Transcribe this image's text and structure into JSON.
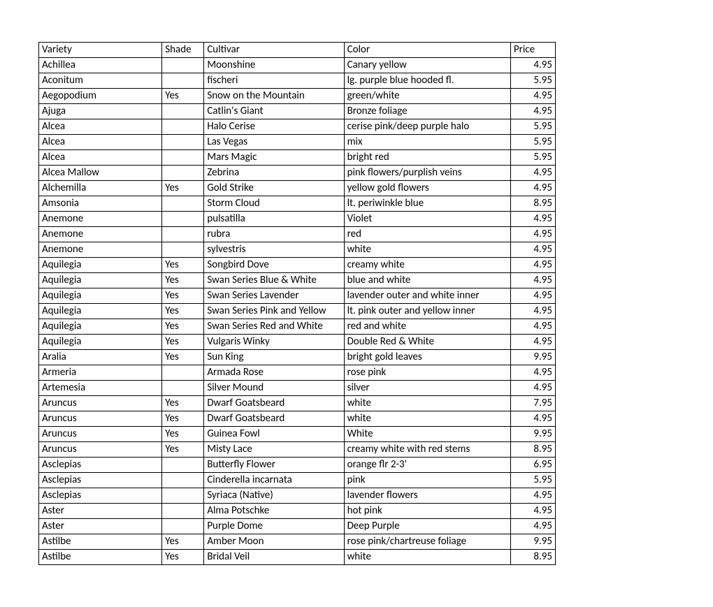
{
  "columns": [
    "Variety",
    "Shade",
    "Cultivar",
    "Color",
    "Price"
  ],
  "rows": [
    [
      "Achillea",
      "",
      "Moonshine",
      "Canary yellow",
      "4.95"
    ],
    [
      "Aconitum",
      "",
      "fischeri",
      "lg. purple blue hooded fl.",
      "5.95"
    ],
    [
      "Aegopodium",
      "Yes",
      "Snow on the Mountain",
      "green/white",
      "4.95"
    ],
    [
      "Ajuga",
      "",
      "Catlin's Giant",
      "Bronze foliage",
      "4.95"
    ],
    [
      "Alcea",
      "",
      "Halo Cerise",
      "cerise pink/deep purple halo",
      "5.95"
    ],
    [
      "Alcea",
      "",
      "Las Vegas",
      "mix",
      "5.95"
    ],
    [
      "Alcea",
      "",
      "Mars Magic",
      "bright red",
      "5.95"
    ],
    [
      "Alcea Mallow",
      "",
      "Zebrina",
      "pink flowers/purplish veins",
      "4.95"
    ],
    [
      "Alchemilla",
      "Yes",
      "Gold Strike",
      "yellow gold flowers",
      "4.95"
    ],
    [
      "Amsonia",
      "",
      "Storm Cloud",
      "lt. periwinkle blue",
      "8.95"
    ],
    [
      "Anemone",
      "",
      "pulsatilla",
      "Violet",
      "4.95"
    ],
    [
      "Anemone",
      "",
      "rubra",
      "red",
      "4.95"
    ],
    [
      "Anemone",
      "",
      "sylvestris",
      "white",
      "4.95"
    ],
    [
      "Aquilegia",
      "Yes",
      "Songbird Dove",
      "creamy white",
      "4.95"
    ],
    [
      "Aquilegia",
      "Yes",
      "Swan Series Blue & White",
      "blue and white",
      "4.95"
    ],
    [
      "Aquilegia",
      "Yes",
      "Swan Series Lavender",
      "lavender outer and white inner",
      "4.95"
    ],
    [
      "Aquilegia",
      "Yes",
      "Swan Series Pink and Yellow",
      "lt. pink outer and yellow inner",
      "4.95"
    ],
    [
      "Aquilegia",
      "Yes",
      "Swan Series Red and White",
      "red and white",
      "4.95"
    ],
    [
      "Aquilegia",
      "Yes",
      "Vulgaris Winky",
      "Double Red & White",
      "4.95"
    ],
    [
      "Aralia",
      "Yes",
      "Sun King",
      "bright gold leaves",
      "9.95"
    ],
    [
      "Armeria",
      "",
      "Armada Rose",
      "rose pink",
      "4.95"
    ],
    [
      "Artemesia",
      "",
      "Silver Mound",
      "silver",
      "4.95"
    ],
    [
      "Aruncus",
      "Yes",
      "Dwarf Goatsbeard",
      "white",
      "7.95"
    ],
    [
      "Aruncus",
      "Yes",
      "Dwarf Goatsbeard",
      "white",
      "4.95"
    ],
    [
      "Aruncus",
      "Yes",
      "Guinea Fowl",
      "White",
      "9.95"
    ],
    [
      "Aruncus",
      "Yes",
      "Misty Lace",
      "creamy white with red stems",
      "8.95"
    ],
    [
      "Asclepias",
      "",
      "Butterfly Flower",
      "orange flr 2-3'",
      "6.95"
    ],
    [
      "Asclepias",
      "",
      "Cinderella incarnata",
      "pink",
      "5.95"
    ],
    [
      "Asclepias",
      "",
      "Syriaca (Native)",
      "lavender flowers",
      "4.95"
    ],
    [
      "Aster",
      "",
      "Alma Potschke",
      "hot pink",
      "4.95"
    ],
    [
      "Aster",
      "",
      "Purple Dome",
      "Deep Purple",
      "4.95"
    ],
    [
      "Astilbe",
      "Yes",
      "Amber Moon",
      "rose pink/chartreuse foliage",
      "9.95"
    ],
    [
      "Astilbe",
      "Yes",
      "Bridal Veil",
      "white",
      "8.95"
    ]
  ]
}
